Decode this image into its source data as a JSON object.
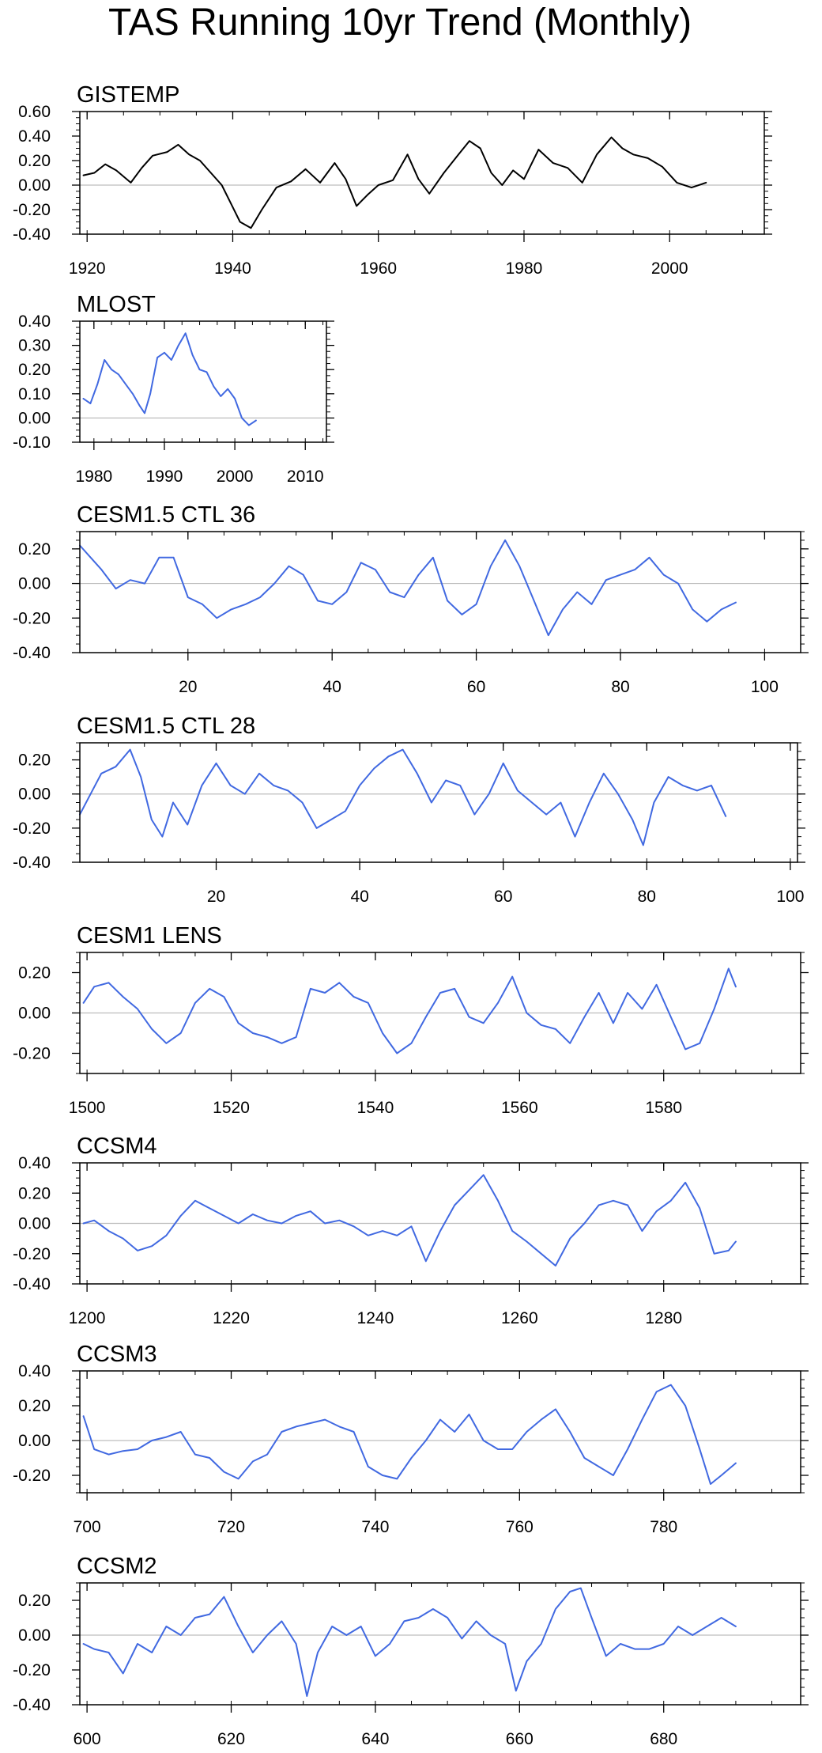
{
  "figure": {
    "title": "TAS Running 10yr Trend (Monthly)"
  },
  "chart_data": [
    {
      "type": "line",
      "title": "GISTEMP",
      "xlim": [
        1919,
        2013
      ],
      "ylim": [
        -0.4,
        0.6
      ],
      "xticks": [
        1920,
        1940,
        1960,
        1980,
        2000
      ],
      "xticklabels": [
        "1920",
        "1940",
        "1960",
        "1980",
        "2000"
      ],
      "yticks": [
        -0.4,
        -0.2,
        0,
        0.2,
        0.4,
        0.6
      ],
      "yticklabels": [
        "-0.40",
        "-0.20",
        "0.00",
        "0.20",
        "0.40",
        "0.60"
      ],
      "zero_line": true,
      "series": [
        {
          "color": "#000000",
          "x": [
            1919.5,
            1921,
            1922.5,
            1924,
            1926,
            1927.5,
            1929,
            1931,
            1932.5,
            1934,
            1935.5,
            1937,
            1938.5,
            1940,
            1941,
            1942.5,
            1944,
            1946,
            1948,
            1950,
            1952,
            1954,
            1955.5,
            1957,
            1958.5,
            1960,
            1962,
            1964,
            1965.5,
            1967,
            1969,
            1971,
            1972.5,
            1974,
            1975.5,
            1977,
            1978.5,
            1980,
            1982,
            1984,
            1986,
            1988,
            1990,
            1992,
            1993.5,
            1995,
            1997,
            1999,
            2001,
            2003,
            2005
          ],
          "y": [
            0.08,
            0.1,
            0.17,
            0.12,
            0.02,
            0.14,
            0.24,
            0.27,
            0.33,
            0.25,
            0.2,
            0.1,
            0.0,
            -0.18,
            -0.3,
            -0.35,
            -0.2,
            -0.02,
            0.03,
            0.13,
            0.02,
            0.18,
            0.05,
            -0.17,
            -0.08,
            0.0,
            0.04,
            0.25,
            0.05,
            -0.07,
            0.1,
            0.25,
            0.36,
            0.3,
            0.1,
            0.0,
            0.12,
            0.05,
            0.29,
            0.18,
            0.14,
            0.02,
            0.25,
            0.39,
            0.3,
            0.25,
            0.22,
            0.15,
            0.02,
            -0.02,
            0.02
          ]
        }
      ]
    },
    {
      "type": "line",
      "title": "MLOST",
      "xlim": [
        1978,
        2013
      ],
      "ylim": [
        -0.1,
        0.4
      ],
      "xticks": [
        1980,
        1990,
        2000,
        2010
      ],
      "xticklabels": [
        "1980",
        "1990",
        "2000",
        "2010"
      ],
      "yticks": [
        -0.1,
        0,
        0.1,
        0.2,
        0.3,
        0.4
      ],
      "yticklabels": [
        "-0.10",
        "0.00",
        "0.10",
        "0.20",
        "0.30",
        "0.40"
      ],
      "zero_line": true,
      "series": [
        {
          "color": "#4169e1",
          "x": [
            1978.5,
            1979.5,
            1980.5,
            1981.5,
            1982.5,
            1983.5,
            1984.5,
            1985.5,
            1986.5,
            1987.2,
            1988,
            1989,
            1990,
            1991,
            1992,
            1993,
            1994,
            1995,
            1996,
            1997,
            1998,
            1999,
            2000,
            2001,
            2002,
            2003
          ],
          "y": [
            0.08,
            0.06,
            0.14,
            0.24,
            0.2,
            0.18,
            0.14,
            0.1,
            0.05,
            0.02,
            0.1,
            0.25,
            0.27,
            0.24,
            0.3,
            0.35,
            0.26,
            0.2,
            0.19,
            0.13,
            0.09,
            0.12,
            0.08,
            0.0,
            -0.03,
            -0.01
          ]
        }
      ]
    },
    {
      "type": "line",
      "title": "CESM1.5 CTL 36",
      "xlim": [
        5,
        105
      ],
      "ylim": [
        -0.4,
        0.3
      ],
      "xticks": [
        20,
        40,
        60,
        80,
        100
      ],
      "xticklabels": [
        "20",
        "40",
        "60",
        "80",
        "100"
      ],
      "yticks": [
        -0.4,
        -0.2,
        0,
        0.2
      ],
      "yticklabels": [
        "-0.40",
        "-0.20",
        "0.00",
        "0.20"
      ],
      "zero_line": true,
      "series": [
        {
          "color": "#4169e1",
          "x": [
            5,
            6.5,
            8,
            10,
            12,
            14,
            16,
            18,
            20,
            22,
            24,
            26,
            28,
            30,
            32,
            34,
            36,
            38,
            40,
            42,
            44,
            46,
            48,
            50,
            52,
            54,
            56,
            58,
            60,
            62,
            64,
            66,
            68,
            70,
            72,
            74,
            76,
            78,
            80,
            82,
            84,
            86,
            88,
            90,
            92,
            94,
            96
          ],
          "y": [
            0.22,
            0.15,
            0.08,
            -0.03,
            0.02,
            0.0,
            0.15,
            0.15,
            -0.08,
            -0.12,
            -0.2,
            -0.15,
            -0.12,
            -0.08,
            0.0,
            0.1,
            0.05,
            -0.1,
            -0.12,
            -0.05,
            0.12,
            0.08,
            -0.05,
            -0.08,
            0.05,
            0.15,
            -0.1,
            -0.18,
            -0.12,
            0.1,
            0.25,
            0.1,
            -0.1,
            -0.3,
            -0.15,
            -0.05,
            -0.12,
            0.02,
            0.05,
            0.08,
            0.15,
            0.05,
            0.0,
            -0.15,
            -0.22,
            -0.15,
            -0.11
          ]
        }
      ]
    },
    {
      "type": "line",
      "title": "CESM1.5 CTL 28",
      "xlim": [
        1,
        101
      ],
      "ylim": [
        -0.4,
        0.3
      ],
      "xticks": [
        20,
        40,
        60,
        80,
        100
      ],
      "xticklabels": [
        "20",
        "40",
        "60",
        "80",
        "100"
      ],
      "yticks": [
        -0.4,
        -0.2,
        0,
        0.2
      ],
      "yticklabels": [
        "-0.40",
        "-0.20",
        "0.00",
        "0.20"
      ],
      "zero_line": true,
      "series": [
        {
          "color": "#4169e1",
          "x": [
            1,
            2.5,
            4,
            6,
            8,
            9.5,
            11,
            12.5,
            14,
            16,
            18,
            20,
            22,
            24,
            26,
            28,
            30,
            32,
            34,
            36,
            38,
            40,
            42,
            44,
            46,
            48,
            50,
            52,
            54,
            56,
            58,
            60,
            62,
            64,
            66,
            68,
            70,
            72,
            74,
            76,
            78,
            79.5,
            81,
            83,
            85,
            87,
            89,
            91
          ],
          "y": [
            -0.12,
            0.0,
            0.12,
            0.16,
            0.26,
            0.1,
            -0.15,
            -0.25,
            -0.05,
            -0.18,
            0.05,
            0.18,
            0.05,
            0.0,
            0.12,
            0.05,
            0.02,
            -0.05,
            -0.2,
            -0.15,
            -0.1,
            0.05,
            0.15,
            0.22,
            0.26,
            0.12,
            -0.05,
            0.08,
            0.05,
            -0.12,
            0.0,
            0.18,
            0.02,
            -0.05,
            -0.12,
            -0.05,
            -0.25,
            -0.05,
            0.12,
            0.0,
            -0.15,
            -0.3,
            -0.05,
            0.1,
            0.05,
            0.02,
            0.05,
            -0.13
          ]
        }
      ]
    },
    {
      "type": "line",
      "title": "CESM1 LENS",
      "xlim": [
        1499,
        1599
      ],
      "ylim": [
        -0.3,
        0.3
      ],
      "xticks": [
        1500,
        1520,
        1540,
        1560,
        1580
      ],
      "xticklabels": [
        "1500",
        "1520",
        "1540",
        "1560",
        "1580"
      ],
      "yticks": [
        -0.2,
        0,
        0.2
      ],
      "yticklabels": [
        "-0.20",
        "0.00",
        "0.20"
      ],
      "zero_line": true,
      "series": [
        {
          "color": "#4169e1",
          "x": [
            1499.5,
            1501,
            1503,
            1505,
            1507,
            1509,
            1511,
            1513,
            1515,
            1517,
            1519,
            1521,
            1523,
            1525,
            1527,
            1529,
            1531,
            1533,
            1535,
            1537,
            1539,
            1541,
            1543,
            1545,
            1547,
            1549,
            1551,
            1553,
            1555,
            1557,
            1559,
            1561,
            1563,
            1565,
            1567,
            1569,
            1571,
            1573,
            1575,
            1577,
            1579,
            1581,
            1583,
            1585,
            1587,
            1589,
            1590
          ],
          "y": [
            0.05,
            0.13,
            0.15,
            0.08,
            0.02,
            -0.08,
            -0.15,
            -0.1,
            0.05,
            0.12,
            0.08,
            -0.05,
            -0.1,
            -0.12,
            -0.15,
            -0.12,
            0.12,
            0.1,
            0.15,
            0.08,
            0.05,
            -0.1,
            -0.2,
            -0.15,
            -0.02,
            0.1,
            0.12,
            -0.02,
            -0.05,
            0.05,
            0.18,
            0.0,
            -0.06,
            -0.08,
            -0.15,
            -0.02,
            0.1,
            -0.05,
            0.1,
            0.02,
            0.14,
            -0.02,
            -0.18,
            -0.15,
            0.02,
            0.22,
            0.13
          ]
        }
      ]
    },
    {
      "type": "line",
      "title": "CCSM4",
      "xlim": [
        1199,
        1299
      ],
      "ylim": [
        -0.4,
        0.4
      ],
      "xticks": [
        1200,
        1220,
        1240,
        1260,
        1280
      ],
      "xticklabels": [
        "1200",
        "1220",
        "1240",
        "1260",
        "1280"
      ],
      "yticks": [
        -0.4,
        -0.2,
        0,
        0.2,
        0.4
      ],
      "yticklabels": [
        "-0.40",
        "-0.20",
        "0.00",
        "0.20",
        "0.40"
      ],
      "zero_line": true,
      "series": [
        {
          "color": "#4169e1",
          "x": [
            1199.5,
            1201,
            1203,
            1205,
            1207,
            1209,
            1211,
            1213,
            1215,
            1217,
            1219,
            1221,
            1223,
            1225,
            1227,
            1229,
            1231,
            1233,
            1235,
            1237,
            1239,
            1241,
            1243,
            1245,
            1247,
            1249,
            1251,
            1253,
            1255,
            1257,
            1259,
            1261,
            1263,
            1265,
            1267,
            1269,
            1271,
            1273,
            1275,
            1277,
            1279,
            1281,
            1283,
            1285,
            1287,
            1289,
            1290
          ],
          "y": [
            0.0,
            0.02,
            -0.05,
            -0.1,
            -0.18,
            -0.15,
            -0.08,
            0.05,
            0.15,
            0.1,
            0.05,
            0.0,
            0.06,
            0.02,
            0.0,
            0.05,
            0.08,
            0.0,
            0.02,
            -0.02,
            -0.08,
            -0.05,
            -0.08,
            -0.02,
            -0.25,
            -0.05,
            0.12,
            0.22,
            0.32,
            0.15,
            -0.05,
            -0.12,
            -0.2,
            -0.28,
            -0.1,
            0.0,
            0.12,
            0.15,
            0.12,
            -0.05,
            0.08,
            0.15,
            0.27,
            0.1,
            -0.2,
            -0.18,
            -0.12
          ]
        }
      ]
    },
    {
      "type": "line",
      "title": "CCSM3",
      "xlim": [
        699,
        799
      ],
      "ylim": [
        -0.3,
        0.4
      ],
      "xticks": [
        700,
        720,
        740,
        760,
        780
      ],
      "xticklabels": [
        "700",
        "720",
        "740",
        "760",
        "780"
      ],
      "yticks": [
        -0.2,
        0,
        0.2,
        0.4
      ],
      "yticklabels": [
        "-0.20",
        "0.00",
        "0.20",
        "0.40"
      ],
      "zero_line": true,
      "series": [
        {
          "color": "#4169e1",
          "x": [
            699.5,
            701,
            703,
            705,
            707,
            709,
            711,
            713,
            715,
            717,
            719,
            721,
            723,
            725,
            727,
            729,
            731,
            733,
            735,
            737,
            739,
            741,
            743,
            745,
            747,
            749,
            751,
            753,
            755,
            757,
            759,
            761,
            763,
            765,
            767,
            769,
            771,
            773,
            775,
            777,
            779,
            781,
            783,
            785,
            786.5,
            788,
            790
          ],
          "y": [
            0.14,
            -0.05,
            -0.08,
            -0.06,
            -0.05,
            0.0,
            0.02,
            0.05,
            -0.08,
            -0.1,
            -0.18,
            -0.22,
            -0.12,
            -0.08,
            0.05,
            0.08,
            0.1,
            0.12,
            0.08,
            0.05,
            -0.15,
            -0.2,
            -0.22,
            -0.1,
            0.0,
            0.12,
            0.05,
            0.15,
            0.0,
            -0.05,
            -0.05,
            0.05,
            0.12,
            0.18,
            0.05,
            -0.1,
            -0.15,
            -0.2,
            -0.05,
            0.12,
            0.28,
            0.32,
            0.2,
            -0.05,
            -0.25,
            -0.2,
            -0.13
          ]
        }
      ]
    },
    {
      "type": "line",
      "title": "CCSM2",
      "xlim": [
        599,
        699
      ],
      "ylim": [
        -0.4,
        0.3
      ],
      "xticks": [
        600,
        620,
        640,
        660,
        680
      ],
      "xticklabels": [
        "600",
        "620",
        "640",
        "660",
        "680"
      ],
      "yticks": [
        -0.4,
        -0.2,
        0,
        0.2
      ],
      "yticklabels": [
        "-0.40",
        "-0.20",
        "0.00",
        "0.20"
      ],
      "zero_line": true,
      "series": [
        {
          "color": "#4169e1",
          "x": [
            599.5,
            601,
            603,
            605,
            607,
            609,
            611,
            613,
            615,
            617,
            619,
            621,
            623,
            625,
            627,
            629,
            630.5,
            632,
            634,
            636,
            638,
            640,
            642,
            644,
            646,
            648,
            650,
            652,
            654,
            656,
            658,
            659.5,
            661,
            663,
            665,
            667,
            668.5,
            670,
            672,
            674,
            676,
            678,
            680,
            682,
            684,
            686,
            688,
            690
          ],
          "y": [
            -0.05,
            -0.08,
            -0.1,
            -0.22,
            -0.05,
            -0.1,
            0.05,
            0.0,
            0.1,
            0.12,
            0.22,
            0.05,
            -0.1,
            0.0,
            0.08,
            -0.05,
            -0.35,
            -0.1,
            0.05,
            0.0,
            0.05,
            -0.12,
            -0.05,
            0.08,
            0.1,
            0.15,
            0.1,
            -0.02,
            0.08,
            0.0,
            -0.05,
            -0.32,
            -0.15,
            -0.05,
            0.15,
            0.25,
            0.27,
            0.1,
            -0.12,
            -0.05,
            -0.08,
            -0.08,
            -0.05,
            0.05,
            0.0,
            0.05,
            0.1,
            0.05
          ]
        }
      ]
    }
  ]
}
